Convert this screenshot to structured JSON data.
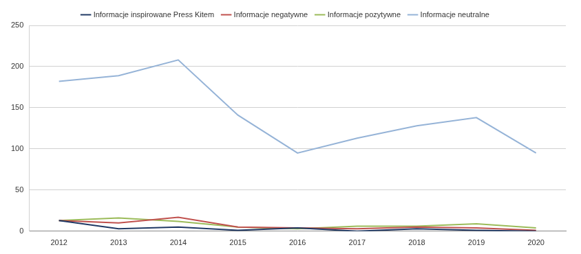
{
  "chart_data": {
    "type": "line",
    "categories": [
      "2012",
      "2013",
      "2014",
      "2015",
      "2016",
      "2017",
      "2018",
      "2019",
      "2020"
    ],
    "series": [
      {
        "name": "Informacje inspirowane Press Kitem",
        "color": "#1f3864",
        "values": [
          13,
          3,
          5,
          1,
          4,
          0,
          3,
          1,
          0
        ]
      },
      {
        "name": "Informacje negatywne",
        "color": "#c0504d",
        "values": [
          13,
          10,
          17,
          5,
          4,
          3,
          5,
          4,
          1
        ]
      },
      {
        "name": "Informacje pozytywne",
        "color": "#9bbb59",
        "values": [
          13,
          16,
          12,
          5,
          3,
          6,
          6,
          9,
          4
        ]
      },
      {
        "name": "Informacje neutralne",
        "color": "#95b3d7",
        "values": [
          182,
          189,
          208,
          141,
          95,
          113,
          128,
          138,
          95
        ]
      }
    ],
    "ylim": [
      0,
      250
    ],
    "yticks": [
      0,
      50,
      100,
      150,
      200,
      250
    ],
    "grid": true,
    "legend": "top"
  }
}
